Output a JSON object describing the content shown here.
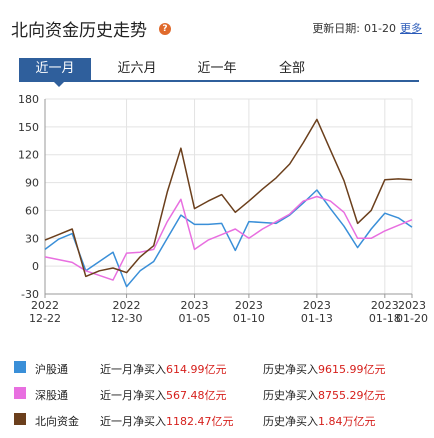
{
  "header": {
    "title": "北向资金历史走势",
    "update_label": "更新日期:",
    "update_value": "01-20",
    "more_label": "更多"
  },
  "tabs": [
    {
      "label": "近一月"
    },
    {
      "label": "近六月"
    },
    {
      "label": "近一年"
    },
    {
      "label": "全部"
    }
  ],
  "colors": {
    "hgt": "#3a8fd8",
    "sgt": "#e86fe0",
    "north": "#6b3f1c",
    "tab_active": "#2f5f9c",
    "value_red": "#d6201c"
  },
  "chart_data": {
    "type": "line",
    "ylim": [
      -30,
      180
    ],
    "yticks": [
      -30,
      0,
      30,
      60,
      90,
      120,
      150,
      180
    ],
    "x_tick_labels": [
      {
        "i": 0,
        "top": "2022",
        "bottom": "12-22"
      },
      {
        "i": 6,
        "top": "2022",
        "bottom": "12-30"
      },
      {
        "i": 11,
        "top": "2023",
        "bottom": "01-05"
      },
      {
        "i": 15,
        "top": "2023",
        "bottom": "01-10"
      },
      {
        "i": 20,
        "top": "2023",
        "bottom": "01-13"
      },
      {
        "i": 25,
        "top": "2023",
        "bottom": "01-18"
      },
      {
        "i": 27,
        "top": "2023",
        "bottom": "01-20"
      }
    ],
    "point_count": 28,
    "grid": true,
    "series": [
      {
        "name": "沪股通",
        "color_key": "hgt",
        "values": [
          18,
          29,
          35,
          -5,
          5,
          15,
          -22,
          -5,
          5,
          30,
          55,
          45,
          45,
          46,
          17,
          48,
          47,
          46,
          55,
          68,
          82,
          62,
          43,
          20,
          40,
          57,
          52,
          42
        ]
      },
      {
        "name": "深股通",
        "color_key": "sgt",
        "values": [
          10,
          7,
          4,
          -5,
          -10,
          -15,
          14,
          15,
          18,
          48,
          72,
          18,
          28,
          34,
          40,
          30,
          40,
          48,
          56,
          70,
          75,
          70,
          58,
          30,
          30,
          38,
          44,
          50
        ]
      },
      {
        "name": "北向资金",
        "color_key": "north",
        "values": [
          28,
          34,
          40,
          -11,
          -5,
          -2,
          -7,
          10,
          22,
          80,
          127,
          62,
          70,
          77,
          58,
          70,
          83,
          95,
          110,
          133,
          158,
          125,
          92,
          46,
          60,
          93,
          94,
          93
        ]
      }
    ]
  },
  "legend": [
    {
      "name": "沪股通",
      "color_key": "hgt",
      "month_label": "近一月净买入",
      "month_value": "614.99亿元",
      "hist_label": "历史净买入",
      "hist_value": "9615.99亿元"
    },
    {
      "name": "深股通",
      "color_key": "sgt",
      "month_label": "近一月净买入",
      "month_value": "567.48亿元",
      "hist_label": "历史净买入",
      "hist_value": "8755.29亿元"
    },
    {
      "name": "北向资金",
      "color_key": "north",
      "month_label": "近一月净买入",
      "month_value": "1182.47亿元",
      "hist_label": "历史净买入",
      "hist_value": "1.84万亿元"
    }
  ]
}
